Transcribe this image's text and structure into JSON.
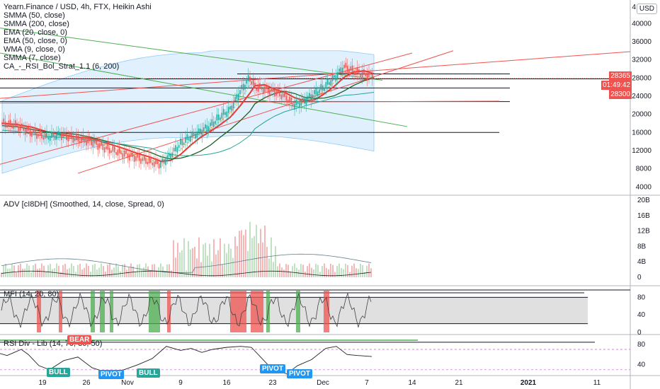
{
  "legend": {
    "main_title": "Yearn.Finance / USD, 4h, FTX, Heikin Ashi",
    "studies": [
      "SMMA (50, close)",
      "SMMA (200, close)",
      "EMA (20, close, 0)",
      "EMA (50, close, 0)",
      "WMA (9, close, 0)",
      "SMMA (7, close)",
      "CA_-_RSI_Bol_Strat_1.1 (6, 200)"
    ],
    "adv": "ADV [cI8DH] (Smoothed, 14, close, Spread, 0)",
    "mfi": "MFI (14, 20, 80)",
    "rsi": "RSI Div - Lib (14, 70, 30, 50)"
  },
  "currency_button": "USD",
  "axis_top_label": "4",
  "price_tags": [
    {
      "label": "28365",
      "color": "#ef5350"
    },
    {
      "label": "01:49:42",
      "color": "#ef5350"
    },
    {
      "label": "28300",
      "color": "#ef5350"
    }
  ],
  "badges": [
    {
      "label": "BEAR",
      "color": "#ef5350"
    },
    {
      "label": "BULL",
      "color": "#26a69a"
    },
    {
      "label": "PIVOT",
      "color": "#2196f3"
    },
    {
      "label": "BULL",
      "color": "#26a69a"
    },
    {
      "label": "PIVOT",
      "color": "#2196f3"
    },
    {
      "label": "PIVOT",
      "color": "#2196f3"
    }
  ],
  "chart_data": [
    {
      "type": "line",
      "title": "Yearn.Finance / USD, 4h, FTX, Heikin Ashi",
      "y_ticks": [
        4000,
        8000,
        12000,
        16000,
        20000,
        24000,
        28000,
        32000,
        36000,
        40000
      ],
      "ylim": [
        2800,
        43000
      ],
      "x_ticks": [
        "19",
        "26",
        "Nov",
        "9",
        "16",
        "23",
        "Dec",
        "7",
        "14",
        "21",
        "2021",
        "11"
      ],
      "series": [
        {
          "name": "price",
          "values": [
            [
              0,
              18000
            ],
            [
              3,
              17500
            ],
            [
              6,
              16000
            ],
            [
              9,
              15000
            ],
            [
              12,
              15500
            ],
            [
              15,
              14500
            ],
            [
              18,
              14000
            ],
            [
              21,
              12500
            ],
            [
              24,
              11500
            ],
            [
              27,
              10500
            ],
            [
              30,
              9500
            ],
            [
              32,
              9000
            ],
            [
              34,
              11000
            ],
            [
              36,
              13500
            ],
            [
              38,
              15000
            ],
            [
              40,
              16200
            ],
            [
              42,
              17500
            ],
            [
              44,
              19500
            ],
            [
              46,
              21000
            ],
            [
              48,
              25000
            ],
            [
              50,
              28000
            ],
            [
              51,
              26000
            ],
            [
              53,
              25500
            ],
            [
              55,
              25000
            ],
            [
              57,
              24000
            ],
            [
              59,
              22000
            ],
            [
              61,
              23000
            ],
            [
              63,
              24500
            ],
            [
              65,
              26000
            ],
            [
              67,
              28000
            ],
            [
              69,
              30500
            ],
            [
              71,
              29500
            ],
            [
              73,
              28800
            ],
            [
              75,
              28500
            ]
          ]
        }
      ],
      "levels": [
        28900,
        27800,
        25800,
        22800,
        16000
      ],
      "last_price": 28365
    },
    {
      "type": "bar",
      "title": "ADV [cI8DH] (Smoothed, 14, close, Spread, 0)",
      "y_ticks_labels": [
        "0",
        "4B",
        "8B",
        "12B",
        "16B",
        "20B"
      ],
      "ylim": [
        0,
        20
      ]
    },
    {
      "type": "line",
      "title": "MFI (14, 20, 80)",
      "y_ticks": [
        0,
        40,
        80
      ],
      "ylim": [
        0,
        100
      ],
      "levels": [
        20,
        80
      ]
    },
    {
      "type": "line",
      "title": "RSI Div - Lib (14, 70, 30, 50)",
      "y_ticks": [
        40,
        80
      ],
      "ylim": [
        20,
        95
      ]
    }
  ]
}
